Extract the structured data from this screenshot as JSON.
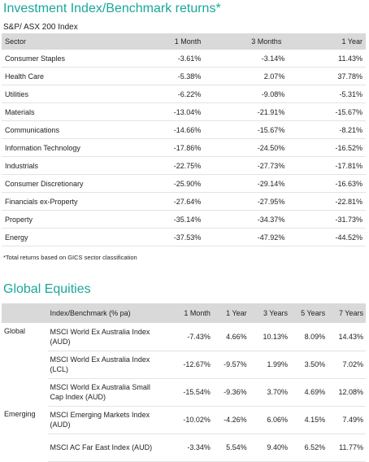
{
  "section1": {
    "title": "Investment Index/Benchmark returns*",
    "subtitle": "S&P/ ASX 200 Index",
    "headers": [
      "Sector",
      "1 Month",
      "3 Months",
      "1 Year"
    ],
    "rows": [
      [
        "Consumer Staples",
        "-3.61%",
        "-3.14%",
        "11.43%"
      ],
      [
        "Health Care",
        "-5.38%",
        "2.07%",
        "37.78%"
      ],
      [
        "Utilities",
        "-6.22%",
        "-9.08%",
        "-5.31%"
      ],
      [
        "Materials",
        "-13.04%",
        "-21.91%",
        "-15.67%"
      ],
      [
        "Communications",
        "-14.66%",
        "-15.67%",
        "-8.21%"
      ],
      [
        "Information Technology",
        "-17.86%",
        "-24.50%",
        "-16.52%"
      ],
      [
        "Industrials",
        "-22.75%",
        "-27.73%",
        "-17.81%"
      ],
      [
        "Consumer Discretionary",
        "-25.90%",
        "-29.14%",
        "-16.63%"
      ],
      [
        "Financials ex-Property",
        "-27.64%",
        "-27.95%",
        "-22.81%"
      ],
      [
        "Property",
        "-35.14%",
        "-34.37%",
        "-31.73%"
      ],
      [
        "Energy",
        "-37.53%",
        "-47.92%",
        "-44.52%"
      ]
    ],
    "footnote": "*Total returns based on GICS sector classification"
  },
  "section2": {
    "title": "Global Equities",
    "headers": [
      "",
      "Index/Benchmark (% pa)",
      "1 Month",
      "1 Year",
      "3 Years",
      "5 Years",
      "7 Years"
    ],
    "rows": [
      [
        "Global",
        "MSCI World Ex Australia Index (AUD)",
        "-7.43%",
        "4.66%",
        "10.13%",
        "8.09%",
        "14.43%"
      ],
      [
        "",
        "MSCI World Ex Australia Index (LCL)",
        "-12.67%",
        "-9.57%",
        "1.99%",
        "3.50%",
        "7.02%"
      ],
      [
        "",
        "MSCI World Ex Australia Small Cap Index (AUD)",
        "-15.54%",
        "-9.36%",
        "3.70%",
        "4.69%",
        "12.08%"
      ],
      [
        "Emerging",
        "MSCI Emerging Markets Index (AUD)",
        "-10.02%",
        "-4.26%",
        "6.06%",
        "4.15%",
        "7.49%"
      ],
      [
        "",
        "MSCI AC Far East Index (AUD)",
        "-3.34%",
        "5.54%",
        "9.40%",
        "6.52%",
        "11.77%"
      ]
    ]
  }
}
